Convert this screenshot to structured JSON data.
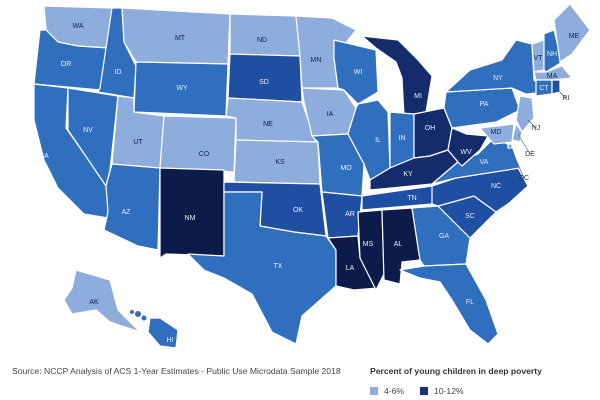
{
  "source_note": "Source: NCCP Analysis of ACS 1-Year Estimates - Public Use Microdata Sample 2018",
  "legend": {
    "title": "Percent of young children in deep poverty",
    "items": [
      {
        "label": "4-6%",
        "color": "#8eaddd"
      },
      {
        "label": "10-12%",
        "color": "#1a2f79"
      }
    ]
  },
  "colors": {
    "c1": "#8eaddd",
    "c2": "#5f8fd0",
    "c3": "#2f6fbe",
    "c4": "#1f4fa3",
    "c5": "#142c6c",
    "c6": "#0d1b4b"
  },
  "states": [
    {
      "abbr": "WA",
      "shade": "c1"
    },
    {
      "abbr": "OR",
      "shade": "c3"
    },
    {
      "abbr": "CA",
      "shade": "c3"
    },
    {
      "abbr": "ID",
      "shade": "c3"
    },
    {
      "abbr": "NV",
      "shade": "c3"
    },
    {
      "abbr": "MT",
      "shade": "c1"
    },
    {
      "abbr": "WY",
      "shade": "c3"
    },
    {
      "abbr": "UT",
      "shade": "c1"
    },
    {
      "abbr": "CO",
      "shade": "c1"
    },
    {
      "abbr": "AZ",
      "shade": "c3"
    },
    {
      "abbr": "NM",
      "shade": "c6"
    },
    {
      "abbr": "ND",
      "shade": "c1"
    },
    {
      "abbr": "SD",
      "shade": "c4"
    },
    {
      "abbr": "NE",
      "shade": "c1"
    },
    {
      "abbr": "KS",
      "shade": "c1"
    },
    {
      "abbr": "OK",
      "shade": "c4"
    },
    {
      "abbr": "TX",
      "shade": "c3"
    },
    {
      "abbr": "MN",
      "shade": "c1"
    },
    {
      "abbr": "IA",
      "shade": "c1"
    },
    {
      "abbr": "MO",
      "shade": "c3"
    },
    {
      "abbr": "AR",
      "shade": "c4"
    },
    {
      "abbr": "LA",
      "shade": "c6"
    },
    {
      "abbr": "WI",
      "shade": "c3"
    },
    {
      "abbr": "IL",
      "shade": "c3"
    },
    {
      "abbr": "MI",
      "shade": "c5"
    },
    {
      "abbr": "IN",
      "shade": "c3"
    },
    {
      "abbr": "OH",
      "shade": "c5"
    },
    {
      "abbr": "KY",
      "shade": "c5"
    },
    {
      "abbr": "TN",
      "shade": "c4"
    },
    {
      "abbr": "MS",
      "shade": "c6"
    },
    {
      "abbr": "AL",
      "shade": "c6"
    },
    {
      "abbr": "GA",
      "shade": "c3"
    },
    {
      "abbr": "FL",
      "shade": "c3"
    },
    {
      "abbr": "SC",
      "shade": "c4"
    },
    {
      "abbr": "NC",
      "shade": "c4"
    },
    {
      "abbr": "VA",
      "shade": "c3"
    },
    {
      "abbr": "WV",
      "shade": "c5"
    },
    {
      "abbr": "PA",
      "shade": "c3"
    },
    {
      "abbr": "NY",
      "shade": "c3"
    },
    {
      "abbr": "VT",
      "shade": "c1"
    },
    {
      "abbr": "NH",
      "shade": "c3"
    },
    {
      "abbr": "ME",
      "shade": "c1"
    },
    {
      "abbr": "MA",
      "shade": "c1"
    },
    {
      "abbr": "CT",
      "shade": "c3"
    },
    {
      "abbr": "RI",
      "shade": "c4"
    },
    {
      "abbr": "NJ",
      "shade": "c1"
    },
    {
      "abbr": "DE",
      "shade": "c1"
    },
    {
      "abbr": "MD",
      "shade": "c1"
    },
    {
      "abbr": "DC",
      "shade": "c1"
    },
    {
      "abbr": "AK",
      "shade": "c1"
    },
    {
      "abbr": "HI",
      "shade": "c3"
    }
  ]
}
